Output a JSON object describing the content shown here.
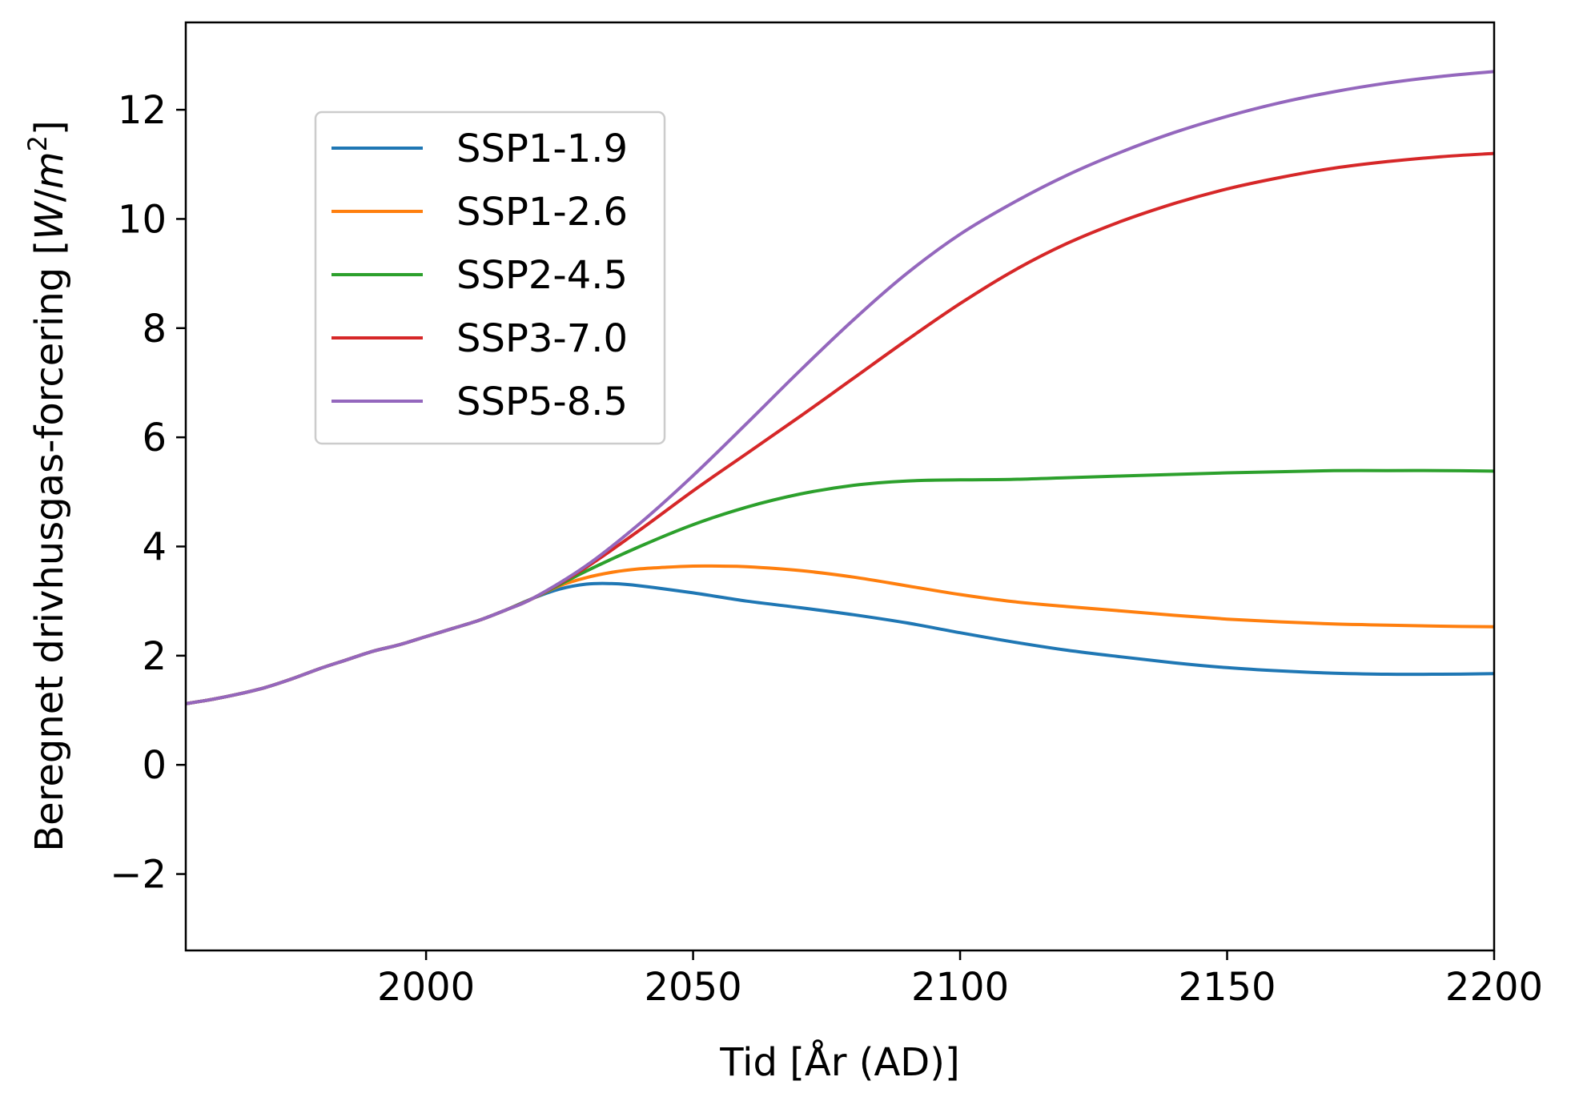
{
  "chart_data": {
    "type": "line",
    "xlabel": "Tid [År (AD)]",
    "ylabel_main": "Beregnet drivhusgas-forcering [",
    "ylabel_unit_w": "W",
    "ylabel_unit_slash": "/",
    "ylabel_unit_m": "m",
    "ylabel_unit_exp": "2",
    "ylabel_close": "]",
    "xlim": [
      1955,
      2200
    ],
    "ylim": [
      -3.4,
      13.6
    ],
    "xticks": [
      2000,
      2050,
      2100,
      2150,
      2200
    ],
    "xtick_labels": [
      "2000",
      "2050",
      "2100",
      "2150",
      "2200"
    ],
    "yticks": [
      -2,
      0,
      2,
      4,
      6,
      8,
      10,
      12
    ],
    "ytick_labels": [
      "−2",
      "0",
      "2",
      "4",
      "6",
      "8",
      "10",
      "12"
    ],
    "grid": false,
    "legend_position": "upper-left",
    "historical": {
      "x": [
        1955,
        1960,
        1965,
        1970,
        1975,
        1980,
        1985,
        1990,
        1995,
        2000,
        2005,
        2010,
        2015,
        2020
      ],
      "y": [
        1.12,
        1.2,
        1.3,
        1.42,
        1.58,
        1.76,
        1.92,
        2.08,
        2.2,
        2.35,
        2.5,
        2.65,
        2.84,
        3.05
      ]
    },
    "series": [
      {
        "name": "SSP1-1.9",
        "color": "#1f77b4",
        "x": [
          2020,
          2025,
          2030,
          2035,
          2040,
          2050,
          2060,
          2070,
          2080,
          2090,
          2100,
          2110,
          2120,
          2130,
          2140,
          2150,
          2160,
          2170,
          2180,
          2190,
          2200
        ],
        "y": [
          3.05,
          3.22,
          3.31,
          3.32,
          3.28,
          3.15,
          3.0,
          2.88,
          2.75,
          2.6,
          2.42,
          2.25,
          2.1,
          1.98,
          1.87,
          1.78,
          1.72,
          1.68,
          1.66,
          1.66,
          1.67
        ]
      },
      {
        "name": "SSP1-2.6",
        "color": "#ff7f0e",
        "x": [
          2020,
          2025,
          2030,
          2035,
          2040,
          2045,
          2050,
          2055,
          2060,
          2070,
          2080,
          2090,
          2100,
          2110,
          2120,
          2130,
          2140,
          2150,
          2160,
          2170,
          2180,
          2190,
          2200
        ],
        "y": [
          3.05,
          3.28,
          3.43,
          3.53,
          3.59,
          3.62,
          3.64,
          3.64,
          3.63,
          3.56,
          3.44,
          3.28,
          3.12,
          2.99,
          2.9,
          2.82,
          2.74,
          2.67,
          2.62,
          2.58,
          2.56,
          2.54,
          2.53
        ]
      },
      {
        "name": "SSP2-4.5",
        "color": "#2ca02c",
        "x": [
          2020,
          2030,
          2040,
          2050,
          2060,
          2070,
          2080,
          2090,
          2100,
          2110,
          2120,
          2130,
          2140,
          2150,
          2160,
          2170,
          2180,
          2190,
          2200
        ],
        "y": [
          3.05,
          3.55,
          4.0,
          4.4,
          4.72,
          4.96,
          5.12,
          5.2,
          5.22,
          5.23,
          5.26,
          5.29,
          5.32,
          5.35,
          5.37,
          5.39,
          5.39,
          5.39,
          5.38
        ]
      },
      {
        "name": "SSP3-7.0",
        "color": "#d62728",
        "x": [
          2020,
          2030,
          2040,
          2050,
          2060,
          2070,
          2080,
          2090,
          2100,
          2110,
          2120,
          2130,
          2140,
          2150,
          2160,
          2170,
          2180,
          2190,
          2200
        ],
        "y": [
          3.05,
          3.62,
          4.3,
          5.02,
          5.7,
          6.38,
          7.08,
          7.78,
          8.45,
          9.05,
          9.55,
          9.95,
          10.28,
          10.55,
          10.76,
          10.93,
          11.05,
          11.14,
          11.2
        ]
      },
      {
        "name": "SSP5-8.5",
        "color": "#9467bd",
        "x": [
          2020,
          2030,
          2040,
          2050,
          2060,
          2070,
          2080,
          2090,
          2100,
          2110,
          2120,
          2130,
          2140,
          2150,
          2160,
          2170,
          2180,
          2190,
          2200
        ],
        "y": [
          3.05,
          3.65,
          4.42,
          5.3,
          6.25,
          7.22,
          8.15,
          9.0,
          9.72,
          10.3,
          10.8,
          11.22,
          11.58,
          11.88,
          12.13,
          12.33,
          12.49,
          12.61,
          12.7
        ]
      }
    ]
  }
}
